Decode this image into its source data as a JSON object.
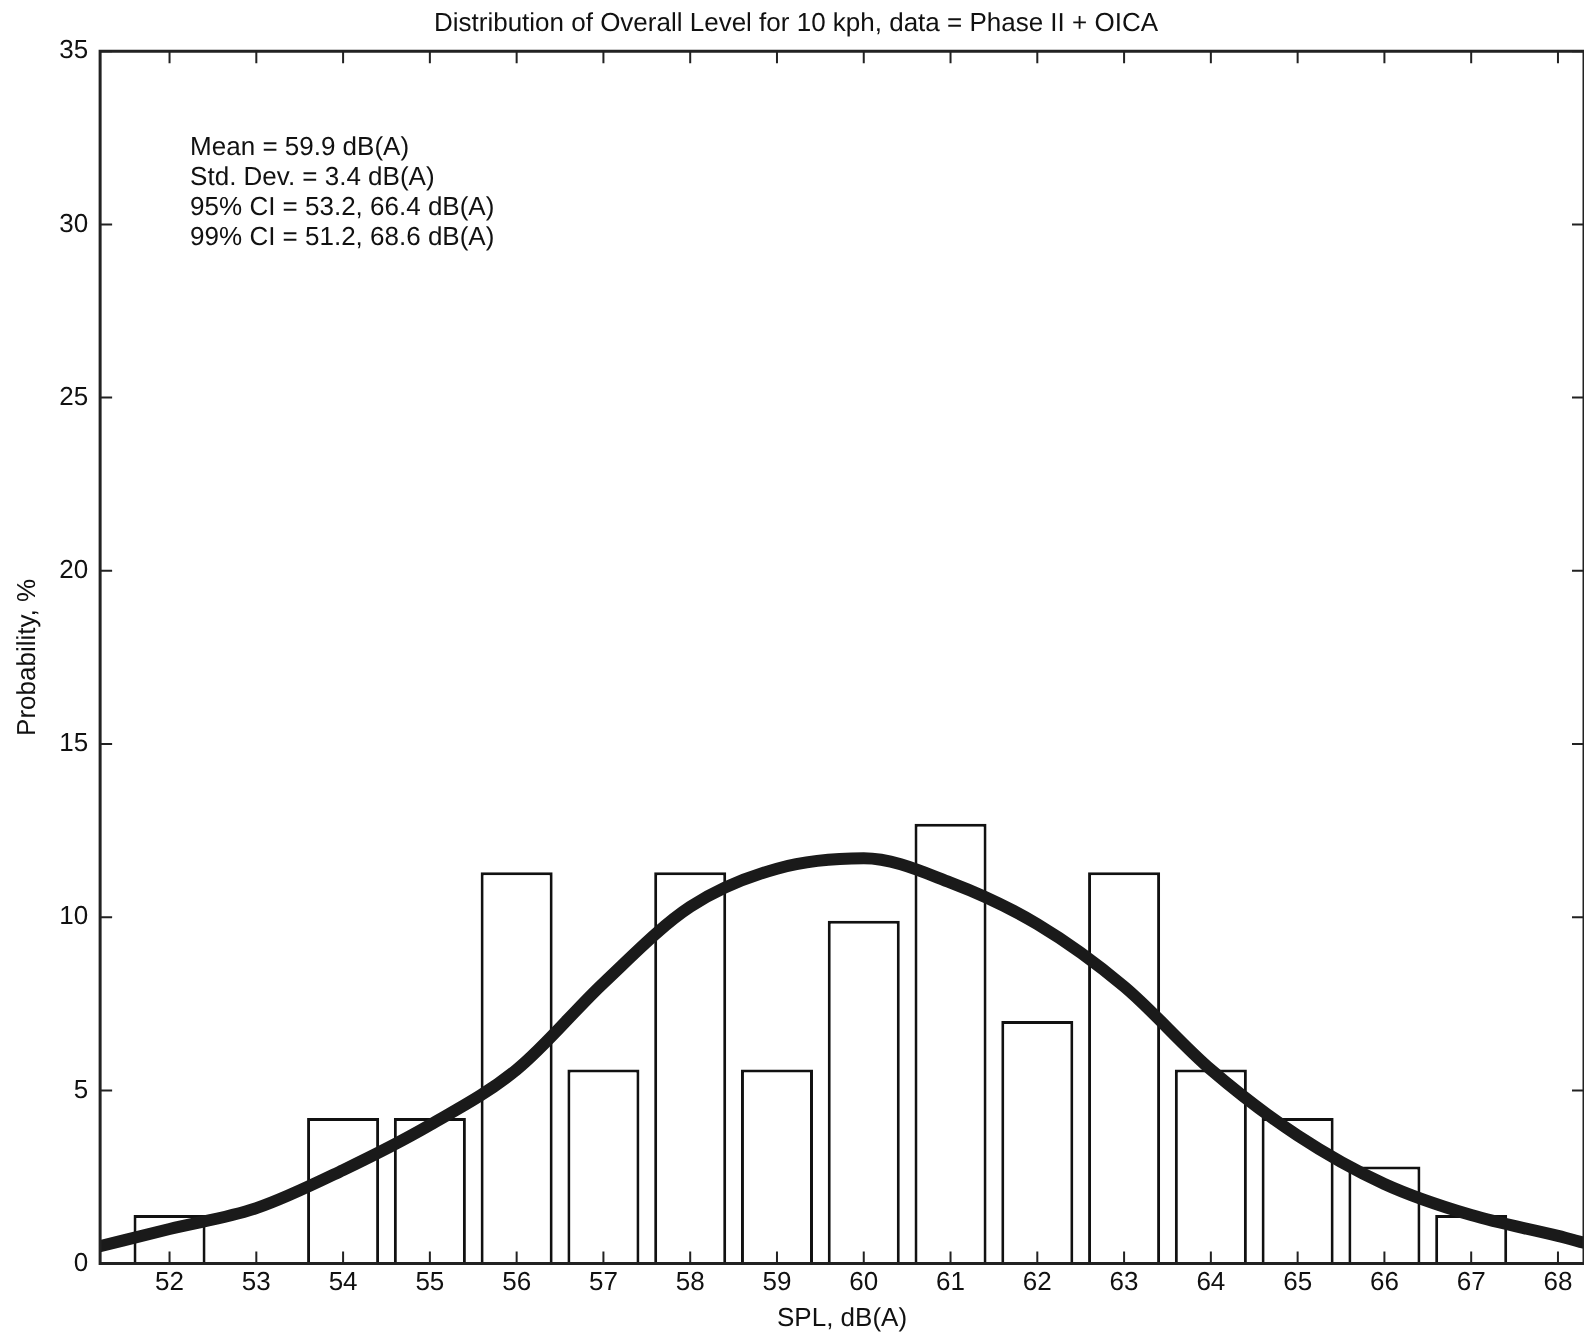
{
  "chart_data": {
    "type": "bar",
    "title": "Distribution of Overall Level for 10 kph, data = Phase II + OICA",
    "xlabel": "SPL, dB(A)",
    "ylabel": "Probability, %",
    "annotations": [
      "Mean = 59.9 dB(A)",
      "Std. Dev. = 3.4 dB(A)",
      "95% CI = 53.2, 66.4 dB(A)",
      "99% CI = 51.2, 68.6 dB(A)"
    ],
    "x": [
      52,
      53,
      54,
      55,
      56,
      57,
      58,
      59,
      60,
      61,
      62,
      63,
      64,
      65,
      66,
      67
    ],
    "series": [
      {
        "color": "#ffffff",
        "values": [
          1.4,
          0,
          4.2,
          4.2,
          11.3,
          5.6,
          11.3,
          5.6,
          9.9,
          12.7,
          7.0,
          11.3,
          5.6,
          4.2,
          2.8,
          1.4
        ]
      },
      {
        "type": "line",
        "color": "#1a1a1a",
        "x": [
          51.2,
          52,
          53,
          54,
          55,
          56,
          57,
          58,
          59,
          60,
          61,
          62,
          63,
          64,
          65,
          66,
          67,
          68,
          68.3
        ],
        "values": [
          0.5,
          1.0,
          1.6,
          2.7,
          4.0,
          5.6,
          8.1,
          10.3,
          11.4,
          11.7,
          11.0,
          9.8,
          8.0,
          5.6,
          3.7,
          2.3,
          1.4,
          0.8,
          0.6
        ]
      }
    ],
    "xlim": [
      51.2,
      68.3
    ],
    "xticks": [
      52,
      53,
      54,
      55,
      56,
      57,
      58,
      59,
      60,
      61,
      62,
      63,
      64,
      65,
      66,
      67,
      68
    ],
    "ylim": [
      0,
      35
    ],
    "yticks": [
      0,
      5,
      10,
      15,
      20,
      25,
      30,
      35
    ],
    "grid": false,
    "legend": false,
    "marker": "none"
  }
}
